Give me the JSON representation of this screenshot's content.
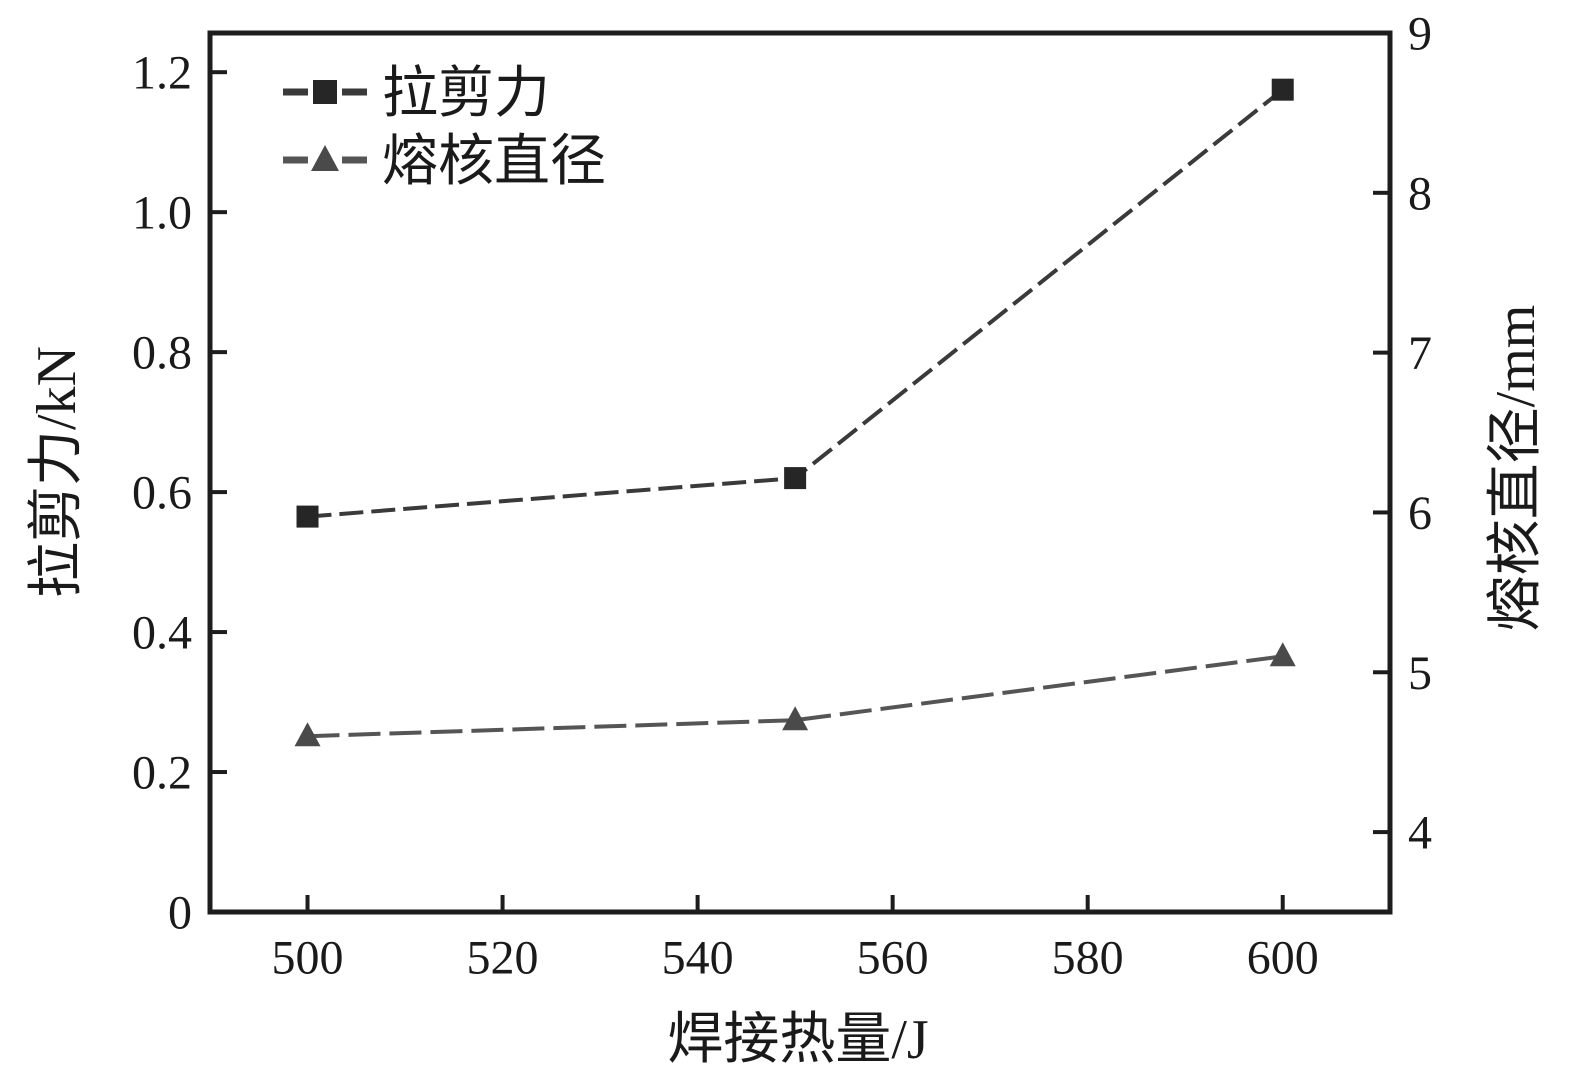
{
  "figure": {
    "background": "#ffffff",
    "text_color": "#1a1a1a",
    "axis_color": "#1d1d1d"
  },
  "chart_data": {
    "type": "line",
    "title": "",
    "xlabel": "焊接热量/J",
    "ylabel_left": "拉剪力/kN",
    "ylabel_right": "熔核直径/mm",
    "x": [
      500,
      550,
      600
    ],
    "series": [
      {
        "id": "tensile-shear-force",
        "name": "拉剪力",
        "axis": "left",
        "marker": "square",
        "marker_color": "#262626",
        "color": "#3a3a3a",
        "line_dash": [
          24,
          8
        ],
        "values": [
          0.565,
          0.62,
          1.175
        ]
      },
      {
        "id": "nugget-diameter",
        "name": "熔核直径",
        "axis": "right",
        "marker": "triangle",
        "marker_color": "#4a4a4a",
        "color": "#555555",
        "line_dash": [
          32,
          9
        ],
        "values": [
          4.6,
          4.7,
          5.1
        ]
      }
    ],
    "xlim": [
      490,
      611
    ],
    "xticks": [
      500,
      520,
      540,
      560,
      580,
      600
    ],
    "ylim_left": [
      0,
      1.256
    ],
    "yticks_left": [
      {
        "v": 0,
        "label": "0"
      },
      {
        "v": 0.2,
        "label": "0.2"
      },
      {
        "v": 0.4,
        "label": "0.4"
      },
      {
        "v": 0.6,
        "label": "0.6"
      },
      {
        "v": 0.8,
        "label": "0.8"
      },
      {
        "v": 1.0,
        "label": "1.0"
      },
      {
        "v": 1.2,
        "label": "1.2"
      }
    ],
    "ylim_right": [
      3.5,
      9
    ],
    "yticks_right": [
      {
        "v": 4,
        "label": "4"
      },
      {
        "v": 5,
        "label": "5"
      },
      {
        "v": 6,
        "label": "6"
      },
      {
        "v": 7,
        "label": "7"
      },
      {
        "v": 8,
        "label": "8"
      },
      {
        "v": 9,
        "label": "9"
      }
    ],
    "legend": {
      "position": "top-left",
      "items": [
        "拉剪力",
        "熔核直径"
      ]
    },
    "grid": false,
    "line_style": "dashed"
  }
}
